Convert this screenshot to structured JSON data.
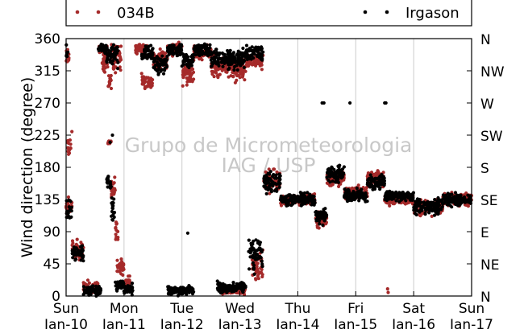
{
  "chart_data": {
    "type": "scatter",
    "title": "",
    "xlabel": "",
    "ylabel": "Wind direction (degree)",
    "ylim": [
      0,
      360
    ],
    "y_ticks": [
      0,
      45,
      90,
      135,
      180,
      225,
      270,
      315,
      360
    ],
    "y_ticks_right": [
      "N",
      "NE",
      "E",
      "SE",
      "S",
      "SW",
      "W",
      "NW",
      "N"
    ],
    "xlim": [
      "2016-01-10",
      "2016-01-17"
    ],
    "x_ticks": [
      {
        "day": "Sun",
        "date": "Jan-10"
      },
      {
        "day": "Mon",
        "date": "Jan-11"
      },
      {
        "day": "Tue",
        "date": "Jan-12"
      },
      {
        "day": "Wed",
        "date": "Jan-13"
      },
      {
        "day": "Thu",
        "date": "Jan-14"
      },
      {
        "day": "Fri",
        "date": "Jan-15"
      },
      {
        "day": "Sat",
        "date": "Jan-16"
      },
      {
        "day": "Sun",
        "date": "Jan-17"
      }
    ],
    "grid": "vertical",
    "legend_position": "top",
    "watermark": [
      "Grupo de Micrometeorologia",
      "IAG / USP"
    ],
    "series": [
      {
        "name": "034B",
        "color": "#a52a2a",
        "segments": [
          {
            "from": 0.0,
            "to": 0.1,
            "mean": 125,
            "spread": 20
          },
          {
            "from": 0.1,
            "to": 0.3,
            "mean": 65,
            "spread": 18
          },
          {
            "from": 0.3,
            "to": 0.55,
            "mean": 12,
            "spread": 12
          },
          {
            "from": 0.0,
            "to": 0.05,
            "mean": 330,
            "spread": 20
          },
          {
            "from": 0.02,
            "to": 0.08,
            "mean": 210,
            "spread": 20
          },
          {
            "from": 0.55,
            "to": 0.72,
            "mean": 345,
            "spread": 12
          },
          {
            "from": 0.62,
            "to": 0.72,
            "mean": 325,
            "spread": 15
          },
          {
            "from": 0.72,
            "to": 0.78,
            "mean": 300,
            "spread": 15
          },
          {
            "from": 0.78,
            "to": 0.95,
            "mean": 330,
            "spread": 25
          },
          {
            "from": 0.72,
            "to": 0.78,
            "mean": 215,
            "spread": 3
          },
          {
            "from": 0.78,
            "to": 0.85,
            "mean": 150,
            "spread": 20
          },
          {
            "from": 0.85,
            "to": 0.9,
            "mean": 90,
            "spread": 30
          },
          {
            "from": 0.88,
            "to": 1.0,
            "mean": 40,
            "spread": 15
          },
          {
            "from": 1.0,
            "to": 1.1,
            "mean": 20,
            "spread": 15
          },
          {
            "from": 1.2,
            "to": 1.4,
            "mean": 345,
            "spread": 10
          },
          {
            "from": 1.3,
            "to": 1.5,
            "mean": 300,
            "spread": 12
          },
          {
            "from": 1.5,
            "to": 1.75,
            "mean": 330,
            "spread": 20
          },
          {
            "from": 1.75,
            "to": 2.0,
            "mean": 345,
            "spread": 12
          },
          {
            "from": 2.0,
            "to": 2.2,
            "mean": 310,
            "spread": 20
          },
          {
            "from": 2.2,
            "to": 2.5,
            "mean": 340,
            "spread": 15
          },
          {
            "from": 2.5,
            "to": 2.8,
            "mean": 320,
            "spread": 20
          },
          {
            "from": 2.8,
            "to": 3.1,
            "mean": 315,
            "spread": 20
          },
          {
            "from": 3.1,
            "to": 3.4,
            "mean": 330,
            "spread": 15
          },
          {
            "from": 2.7,
            "to": 3.1,
            "mean": 8,
            "spread": 8
          },
          {
            "from": 3.2,
            "to": 3.4,
            "mean": 45,
            "spread": 30
          },
          {
            "from": 3.4,
            "to": 3.7,
            "mean": 160,
            "spread": 20
          },
          {
            "from": 3.7,
            "to": 4.3,
            "mean": 135,
            "spread": 10
          },
          {
            "from": 4.3,
            "to": 4.5,
            "mean": 108,
            "spread": 15
          },
          {
            "from": 4.5,
            "to": 4.8,
            "mean": 165,
            "spread": 15
          },
          {
            "from": 4.8,
            "to": 5.2,
            "mean": 145,
            "spread": 12
          },
          {
            "from": 5.2,
            "to": 5.5,
            "mean": 165,
            "spread": 15
          },
          {
            "from": 5.5,
            "to": 6.0,
            "mean": 135,
            "spread": 10
          },
          {
            "from": 6.0,
            "to": 6.5,
            "mean": 125,
            "spread": 15
          },
          {
            "from": 6.5,
            "to": 7.0,
            "mean": 135,
            "spread": 12
          }
        ]
      },
      {
        "name": "Irgason",
        "color": "#000000",
        "segments": [
          {
            "from": 0.0,
            "to": 0.1,
            "mean": 120,
            "spread": 25
          },
          {
            "from": 0.0,
            "to": 0.03,
            "mean": 340,
            "spread": 15
          },
          {
            "from": 0.1,
            "to": 0.3,
            "mean": 60,
            "spread": 15
          },
          {
            "from": 0.3,
            "to": 0.6,
            "mean": 8,
            "spread": 10
          },
          {
            "from": 0.55,
            "to": 0.7,
            "mean": 345,
            "spread": 10
          },
          {
            "from": 0.7,
            "to": 0.9,
            "mean": 335,
            "spread": 20
          },
          {
            "from": 0.7,
            "to": 0.78,
            "mean": 160,
            "spread": 15
          },
          {
            "from": 0.78,
            "to": 0.85,
            "mean": 120,
            "spread": 30
          },
          {
            "from": 0.85,
            "to": 1.0,
            "mean": 15,
            "spread": 12
          },
          {
            "from": 1.0,
            "to": 1.15,
            "mean": 10,
            "spread": 10
          },
          {
            "from": 1.3,
            "to": 1.5,
            "mean": 340,
            "spread": 15
          },
          {
            "from": 1.5,
            "to": 1.75,
            "mean": 325,
            "spread": 20
          },
          {
            "from": 1.75,
            "to": 2.0,
            "mean": 345,
            "spread": 10
          },
          {
            "from": 1.75,
            "to": 2.2,
            "mean": 8,
            "spread": 8
          },
          {
            "from": 2.0,
            "to": 2.2,
            "mean": 330,
            "spread": 15
          },
          {
            "from": 2.2,
            "to": 2.5,
            "mean": 345,
            "spread": 12
          },
          {
            "from": 2.5,
            "to": 2.8,
            "mean": 330,
            "spread": 20
          },
          {
            "from": 2.6,
            "to": 3.1,
            "mean": 12,
            "spread": 10
          },
          {
            "from": 2.8,
            "to": 3.1,
            "mean": 330,
            "spread": 20
          },
          {
            "from": 3.1,
            "to": 3.4,
            "mean": 340,
            "spread": 15
          },
          {
            "from": 3.15,
            "to": 3.4,
            "mean": 60,
            "spread": 35
          },
          {
            "from": 3.4,
            "to": 3.7,
            "mean": 160,
            "spread": 20
          },
          {
            "from": 3.7,
            "to": 4.3,
            "mean": 135,
            "spread": 12
          },
          {
            "from": 4.3,
            "to": 4.5,
            "mean": 110,
            "spread": 15
          },
          {
            "from": 4.5,
            "to": 4.8,
            "mean": 170,
            "spread": 15
          },
          {
            "from": 4.8,
            "to": 5.2,
            "mean": 140,
            "spread": 12
          },
          {
            "from": 5.2,
            "to": 5.5,
            "mean": 160,
            "spread": 15
          },
          {
            "from": 5.5,
            "to": 6.0,
            "mean": 140,
            "spread": 10
          },
          {
            "from": 6.0,
            "to": 6.5,
            "mean": 125,
            "spread": 15
          },
          {
            "from": 6.5,
            "to": 7.0,
            "mean": 135,
            "spread": 12
          }
        ],
        "outliers": [
          {
            "x": 4.42,
            "y": 270
          },
          {
            "x": 4.45,
            "y": 270
          },
          {
            "x": 4.9,
            "y": 270
          },
          {
            "x": 5.5,
            "y": 270
          },
          {
            "x": 5.52,
            "y": 270
          },
          {
            "x": 2.1,
            "y": 88
          },
          {
            "x": 0.8,
            "y": 225
          },
          {
            "x": 0.76,
            "y": 215
          }
        ]
      }
    ],
    "extra_points_034B": [
      {
        "x": 5.55,
        "y": 10
      },
      {
        "x": 5.56,
        "y": 5
      },
      {
        "x": 0.1,
        "y": 230
      }
    ]
  }
}
